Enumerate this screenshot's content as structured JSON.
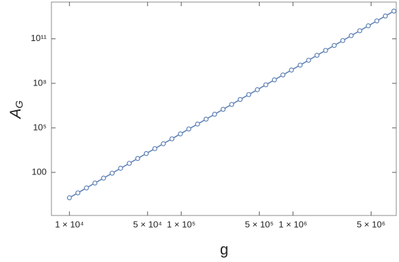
{
  "chart_data": {
    "type": "line",
    "xlabel": "g",
    "ylabel": "A",
    "ylabel_subscript": "G",
    "xscale": "log",
    "yscale": "log",
    "x": [
      10000,
      11900,
      14200,
      16900,
      20200,
      24100,
      28700,
      34300,
      40800,
      48700,
      58100,
      69200,
      82600,
      98400,
      117000,
      140000,
      167000,
      199000,
      237000,
      283000,
      337000,
      402000,
      480000,
      572000,
      682000,
      813000,
      969000,
      1160000,
      1380000,
      1640000,
      1960000,
      2340000,
      2790000,
      3320000,
      3960000,
      4720000,
      5630000,
      6710000,
      8000000
    ],
    "series": [
      {
        "color": "#5e81b5",
        "values": [
          1.95,
          4.18,
          8.95,
          19.2,
          41.1,
          88.1,
          189,
          405,
          867,
          1860,
          3980,
          8530,
          18300,
          39200,
          83900,
          180000,
          385000,
          826000,
          1770000,
          3790000,
          8130000,
          17400000,
          37300000,
          80000000,
          171000000,
          367000000,
          787000000,
          1690000000,
          3610000000,
          7740000000,
          16600000000,
          35600000000,
          76200000000,
          163000000000,
          350000000000,
          750000000000,
          1610000000000,
          3440000000000,
          7380000000000
        ]
      }
    ],
    "xlim": [
      6900,
      8400000
    ],
    "ylim": [
      0.125,
      30000000000000
    ],
    "xticks": [
      {
        "value": 10000,
        "label": "1 × 10⁴"
      },
      {
        "value": 50000,
        "label": "5 × 10⁴"
      },
      {
        "value": 100000,
        "label": "1 × 10⁵"
      },
      {
        "value": 500000,
        "label": "5 × 10⁵"
      },
      {
        "value": 1000000,
        "label": "1 × 10⁶"
      },
      {
        "value": 5000000,
        "label": "5 × 10⁶"
      }
    ],
    "yticks": [
      100,
      {
        "value": 100000,
        "label": "10⁵"
      },
      {
        "value": 100000000,
        "label": "10⁸"
      },
      {
        "value": 100000000000,
        "label": "10¹¹"
      }
    ],
    "grid": false
  }
}
